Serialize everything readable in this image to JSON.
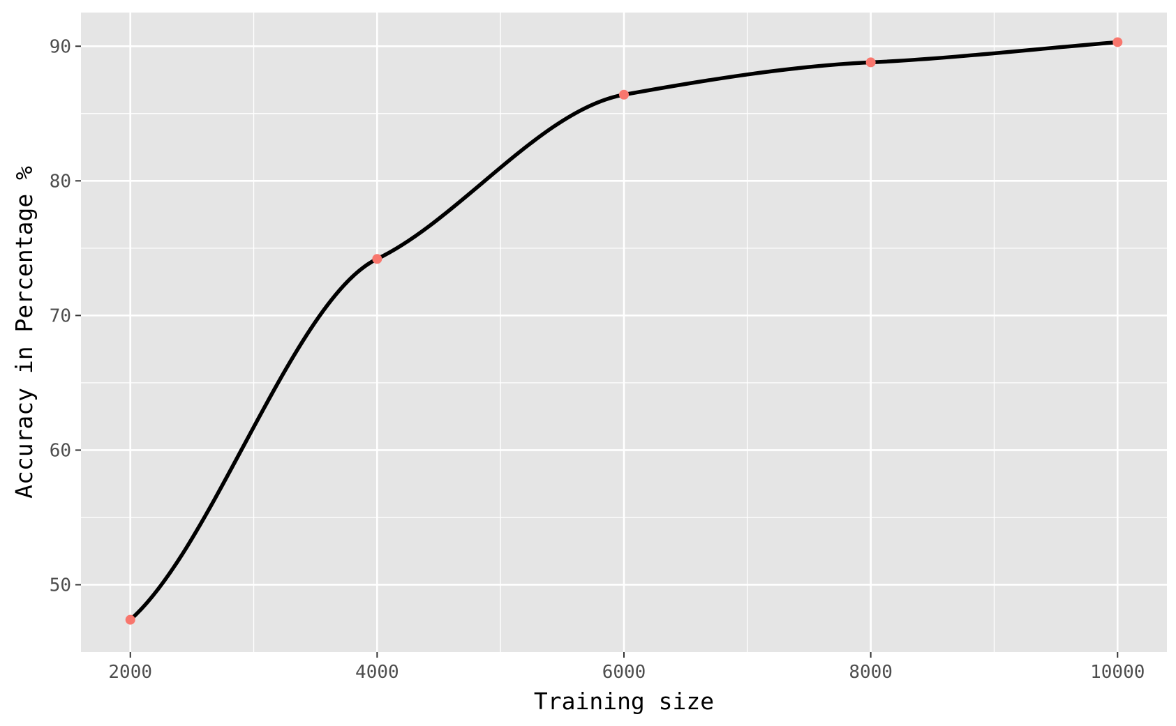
{
  "chart_data": {
    "type": "line",
    "title": "",
    "xlabel": "Training size",
    "ylabel": "Accuracy in Percentage %",
    "x": [
      2000,
      4000,
      6000,
      8000,
      10000
    ],
    "series": [
      {
        "values": [
          47.4,
          74.2,
          86.4,
          88.8,
          90.3
        ]
      }
    ],
    "xlim": [
      1600,
      10400
    ],
    "ylim": [
      45,
      92.5
    ],
    "x_ticks": [
      2000,
      4000,
      6000,
      8000,
      10000
    ],
    "x_tick_labels": [
      "2000",
      "4000",
      "6000",
      "8000",
      "10000"
    ],
    "y_ticks": [
      50,
      60,
      70,
      80,
      90
    ],
    "y_tick_labels": [
      "50",
      "60",
      "70",
      "80",
      "90"
    ],
    "grid": true,
    "legend": "none",
    "colors": {
      "panel_background": "#e5e5e5",
      "grid": "#ffffff",
      "line": "#000000",
      "points": "#f8766d"
    }
  }
}
